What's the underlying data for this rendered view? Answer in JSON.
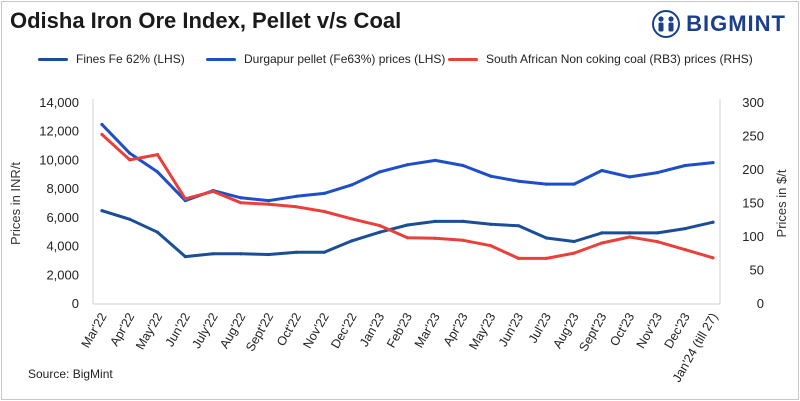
{
  "title": "Odisha Iron Ore Index, Pellet v/s Coal",
  "brand": {
    "name": "BIGMINT",
    "color": "#1a3f8c",
    "icon": "bigmint-logo-icon"
  },
  "source": "Source: BigMint",
  "chart_data": {
    "type": "line",
    "categories": [
      "Mar'22",
      "Apr'22",
      "May'22",
      "Jun'22",
      "July'22",
      "Aug'22",
      "Sept'22",
      "Oct'22",
      "Nov'22",
      "Dec'22",
      "Jan'23",
      "Feb'23",
      "Mar'23",
      "Apr'23",
      "May'23",
      "Jun'23",
      "Jul'23",
      "Aug'23",
      "Sept'23",
      "Oct'23",
      "Nov'23",
      "Dec'23",
      "Jan'24 (till 27)"
    ],
    "series": [
      {
        "name": "Fines Fe 62% (LHS)",
        "axis": "left",
        "color": "#1b4e96",
        "values": [
          6500,
          5900,
          5000,
          3300,
          3500,
          3500,
          3450,
          3600,
          3600,
          4400,
          5000,
          5500,
          5750,
          5750,
          5550,
          5450,
          4600,
          4350,
          4950,
          4950,
          4950,
          5250,
          5700
        ]
      },
      {
        "name": "Durgapur pellet (Fe63%) prices (LHS)",
        "axis": "left",
        "color": "#1e4ec8",
        "values": [
          12500,
          10500,
          9200,
          7200,
          7900,
          7400,
          7200,
          7500,
          7700,
          8300,
          9200,
          9700,
          10000,
          9650,
          8900,
          8550,
          8350,
          8350,
          9300,
          8850,
          9150,
          9650,
          9850
        ]
      },
      {
        "name": "South African Non coking coal (RB3) prices (RHS)",
        "axis": "right",
        "color": "#e8403a",
        "values": [
          253,
          215,
          223,
          157,
          168,
          151,
          149,
          145,
          138,
          127,
          117,
          99,
          98,
          95,
          87,
          68,
          68,
          76,
          91,
          100,
          93,
          81,
          69
        ]
      }
    ],
    "y_left": {
      "label": "Prices in INR/t",
      "min": 0,
      "max": 14000,
      "ticks": [
        "0",
        "2,000",
        "4,000",
        "6,000",
        "8,000",
        "10,000",
        "12,000",
        "14,000"
      ]
    },
    "y_right": {
      "label": "Prices in $/t",
      "min": 0,
      "max": 300,
      "ticks": [
        "0",
        "50",
        "100",
        "150",
        "200",
        "250",
        "300"
      ]
    },
    "grid": false,
    "legend_position": "top"
  }
}
